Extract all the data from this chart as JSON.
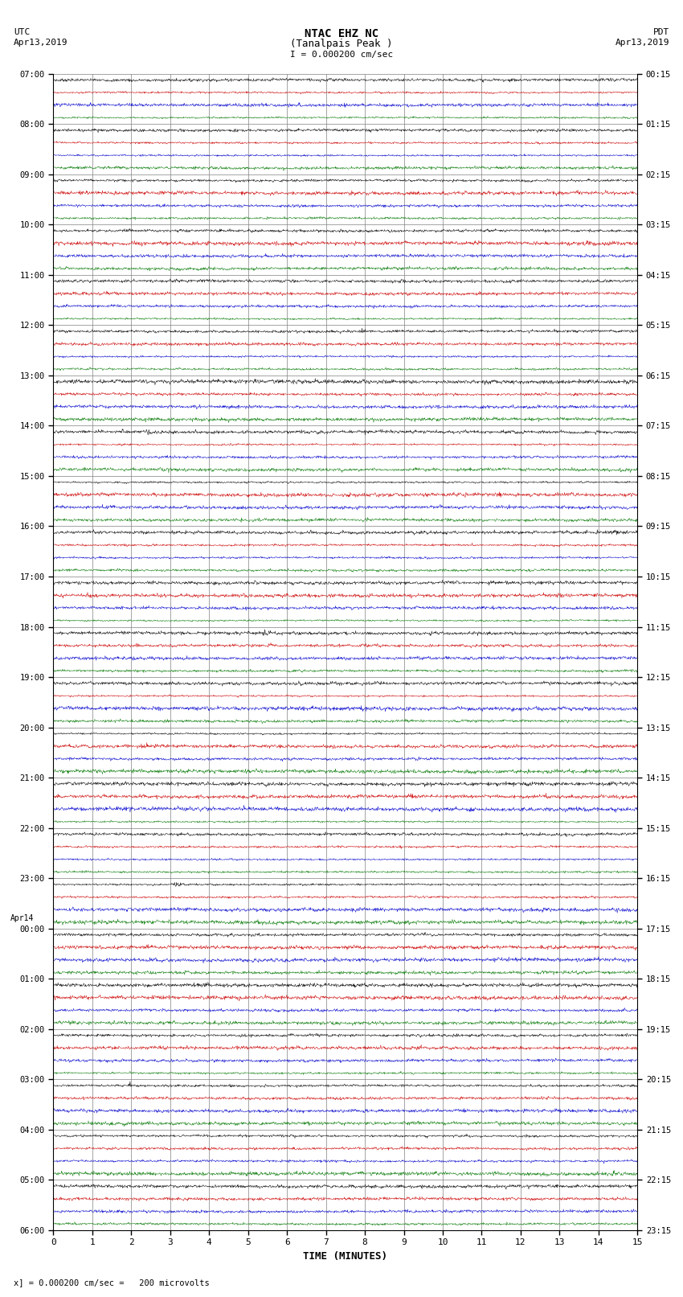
{
  "title_line1": "NTAC EHZ NC",
  "title_line2": "(Tanalpais Peak )",
  "title_scale": "I = 0.000200 cm/sec",
  "left_header_line1": "UTC",
  "left_header_line2": "Apr13,2019",
  "right_header_line1": "PDT",
  "right_header_line2": "Apr13,2019",
  "footer": "x] = 0.000200 cm/sec =   200 microvolts",
  "xlabel": "TIME (MINUTES)",
  "background_color": "#ffffff",
  "plot_bg_color": "#ffffff",
  "grid_color": "#808080",
  "n_rows": 92,
  "n_cols": 4,
  "row_colors": [
    "#000000",
    "#cc0000",
    "#0000cc",
    "#007700"
  ],
  "xlim": [
    0,
    15
  ],
  "xticks": [
    0,
    1,
    2,
    3,
    4,
    5,
    6,
    7,
    8,
    9,
    10,
    11,
    12,
    13,
    14,
    15
  ],
  "noise_base": 0.12,
  "seed": 42,
  "utc_labels": [
    "07:00",
    "08:00",
    "09:00",
    "10:00",
    "11:00",
    "12:00",
    "13:00",
    "14:00",
    "15:00",
    "16:00",
    "17:00",
    "18:00",
    "19:00",
    "20:00",
    "21:00",
    "22:00",
    "23:00",
    "Apr14\n00:00",
    "01:00",
    "02:00",
    "03:00",
    "04:00",
    "05:00",
    "06:00"
  ],
  "pdt_labels": [
    "00:15",
    "01:15",
    "02:15",
    "03:15",
    "04:15",
    "05:15",
    "06:15",
    "07:15",
    "08:15",
    "09:15",
    "10:15",
    "11:15",
    "12:15",
    "13:15",
    "14:15",
    "15:15",
    "16:15",
    "17:15",
    "18:15",
    "19:15",
    "20:15",
    "21:15",
    "22:15",
    "23:15"
  ]
}
